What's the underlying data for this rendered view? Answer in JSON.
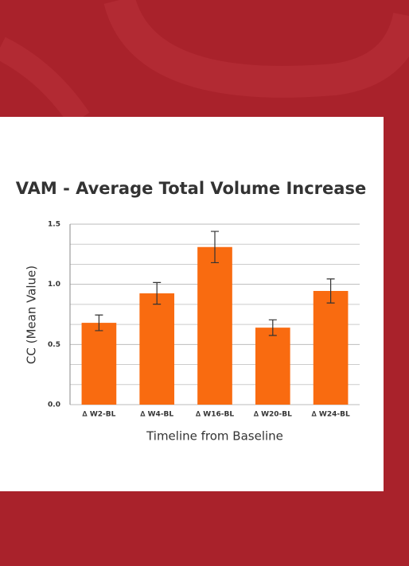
{
  "chart_data": {
    "type": "bar",
    "title": "VAM - Average Total Volume Increase",
    "x_label": "Timeline from Baseline",
    "y_label": "CC (Mean Value)",
    "categories": [
      "∆ W2-BL",
      "∆ W4-BL",
      "∆ W16-BL",
      "∆ W20-BL",
      "∆ W24-BL"
    ],
    "series": [
      {
        "color": "#f96b10",
        "values": [
          0.68,
          0.925,
          1.31,
          0.64,
          0.945
        ],
        "errors": [
          0.065,
          0.09,
          0.13,
          0.065,
          0.1
        ]
      }
    ],
    "ylim": [
      0,
      1.5
    ],
    "yticks": [
      {
        "value": 0,
        "label": "0.0"
      },
      {
        "value": 0.5,
        "label": "0.5"
      },
      {
        "value": 1,
        "label": "1.0"
      },
      {
        "value": 1.5,
        "label": "1.5"
      }
    ],
    "minor_yticks": [
      0.1667,
      0.3333,
      0.6667,
      0.8333,
      1.1667,
      1.3333
    ],
    "grid": true
  }
}
